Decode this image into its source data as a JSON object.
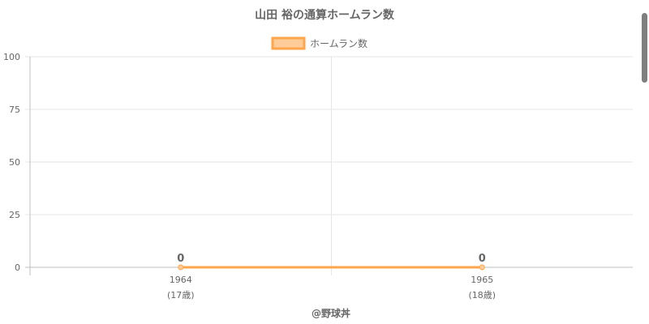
{
  "chart_data": {
    "type": "line",
    "title": "山田 裕の通算ホームラン数",
    "categories": [
      "1964",
      "1965"
    ],
    "category_sublabels": [
      "(17歳)",
      "(18歳)"
    ],
    "series": [
      {
        "name": "ホームラン数",
        "values": [
          0,
          0
        ],
        "color": "#ffa64d",
        "fill": "#ffcc99"
      }
    ],
    "ylim": [
      0,
      100
    ],
    "yticks": [
      "100",
      "75",
      "50",
      "25",
      "0"
    ],
    "ytick_values": [
      100,
      75,
      50,
      25,
      0
    ],
    "data_labels": [
      "0",
      "0"
    ],
    "grid": true,
    "legend": "top"
  },
  "credit": "@野球丼",
  "colors": {
    "grid": "#e6e6e6",
    "axis": "#bfbfbf",
    "text": "#666666",
    "line": "#ffa64d",
    "legend_fill": "#ffcc99"
  }
}
